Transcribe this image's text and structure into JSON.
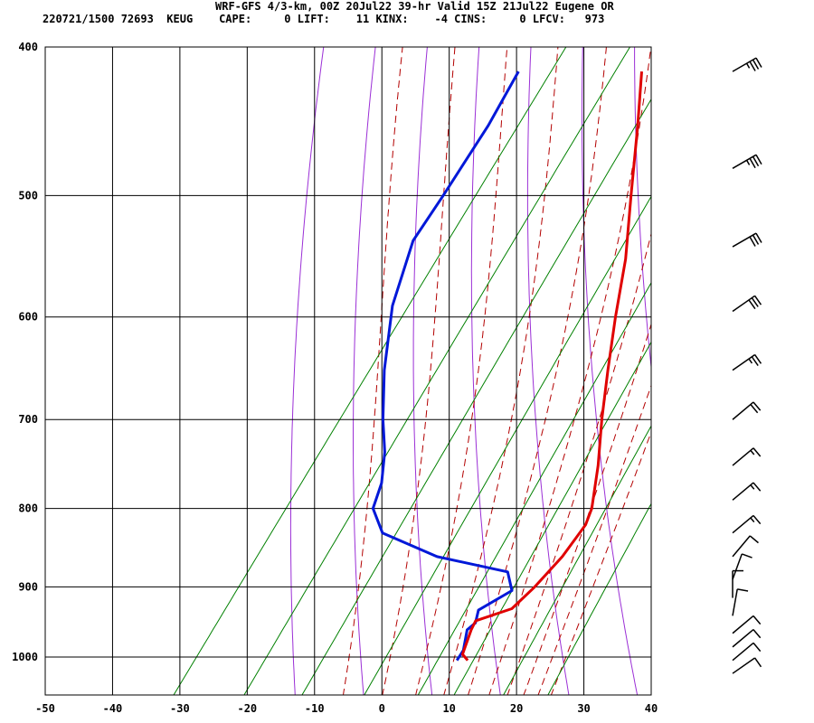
{
  "header": {
    "title": "WRF-GFS 4/3-km, 00Z 20Jul22 39-hr Valid 15Z 21Jul22 Eugene OR",
    "info": "220721/1500 72693  KEUG    CAPE:     0 LIFT:    11 KINX:    -4 CINS:     0 LFCV:   973"
  },
  "colors": {
    "temperature": "#e00000",
    "dewpoint": "#0018d8",
    "isotherm": "#000000",
    "isobar": "#000000",
    "dry_adiabat": "#9b2fd6",
    "moist_adiabat": "#b30000",
    "mixing_ratio": "#008000",
    "wind_barb": "#000000"
  },
  "chart_data": {
    "type": "skew-t",
    "x_axis_ticks": [
      "-50",
      "-40",
      "-30",
      "-20",
      "-10",
      "0",
      "10",
      "20",
      "30",
      "40"
    ],
    "y_axis_ticks": [
      "400",
      "500",
      "600",
      "700",
      "800",
      "900",
      "1000"
    ],
    "xlim": [
      -50,
      40
    ],
    "ylim_hpa": [
      1040,
      400
    ],
    "y_scale": "log",
    "grid": true,
    "temperature_profile": [
      {
        "p": 1005,
        "t": 13.1
      },
      {
        "p": 996,
        "t": 11.7
      },
      {
        "p": 960,
        "t": 10.4
      },
      {
        "p": 947,
        "t": 10.1
      },
      {
        "p": 930,
        "t": 14.2
      },
      {
        "p": 900,
        "t": 15.3
      },
      {
        "p": 860,
        "t": 16.2
      },
      {
        "p": 820,
        "t": 16.3
      },
      {
        "p": 800,
        "t": 15.5
      },
      {
        "p": 750,
        "t": 11.9
      },
      {
        "p": 700,
        "t": 7.6
      },
      {
        "p": 650,
        "t": 3.3
      },
      {
        "p": 600,
        "t": -1.2
      },
      {
        "p": 550,
        "t": -5.8
      },
      {
        "p": 500,
        "t": -11.7
      },
      {
        "p": 450,
        "t": -18.1
      },
      {
        "p": 415,
        "t": -23.2
      }
    ],
    "dewpoint_profile": [
      {
        "p": 1005,
        "t": 11.5
      },
      {
        "p": 990,
        "t": 11.4
      },
      {
        "p": 960,
        "t": 9.8
      },
      {
        "p": 950,
        "t": 10.3
      },
      {
        "p": 932,
        "t": 9.4
      },
      {
        "p": 905,
        "t": 12.3
      },
      {
        "p": 880,
        "t": 9.7
      },
      {
        "p": 860,
        "t": -2.4
      },
      {
        "p": 830,
        "t": -13.0
      },
      {
        "p": 800,
        "t": -17.0
      },
      {
        "p": 770,
        "t": -18.4
      },
      {
        "p": 735,
        "t": -21.2
      },
      {
        "p": 700,
        "t": -24.9
      },
      {
        "p": 650,
        "t": -29.9
      },
      {
        "p": 590,
        "t": -35.5
      },
      {
        "p": 535,
        "t": -39.3
      },
      {
        "p": 500,
        "t": -39.6
      },
      {
        "p": 450,
        "t": -40.3
      },
      {
        "p": 415,
        "t": -41.5
      }
    ],
    "isotherms_c": [
      -50,
      -40,
      -30,
      -20,
      -10,
      0,
      10,
      20,
      30,
      40
    ],
    "isobars_hpa": [
      400,
      500,
      600,
      700,
      800,
      900,
      1000
    ],
    "dry_adiabats_theta_k": [
      260,
      270,
      280,
      290,
      300,
      310,
      320,
      330,
      340,
      350,
      360,
      370,
      380,
      390,
      400,
      410
    ],
    "moist_adiabats_thetae_k": [
      275,
      285,
      295,
      305,
      315,
      325,
      335,
      345,
      355,
      365
    ],
    "mixing_ratio_lines_gkg": [
      0.4,
      1,
      2,
      4,
      7,
      10,
      16,
      24
    ],
    "wind_barbs": [
      {
        "p": 415,
        "speed_kt": 35,
        "dir_deg": 240
      },
      {
        "p": 480,
        "speed_kt": 35,
        "dir_deg": 240
      },
      {
        "p": 540,
        "speed_kt": 30,
        "dir_deg": 240
      },
      {
        "p": 595,
        "speed_kt": 30,
        "dir_deg": 235
      },
      {
        "p": 650,
        "speed_kt": 25,
        "dir_deg": 235
      },
      {
        "p": 700,
        "speed_kt": 20,
        "dir_deg": 230
      },
      {
        "p": 750,
        "speed_kt": 15,
        "dir_deg": 230
      },
      {
        "p": 790,
        "speed_kt": 15,
        "dir_deg": 230
      },
      {
        "p": 830,
        "speed_kt": 15,
        "dir_deg": 230
      },
      {
        "p": 860,
        "speed_kt": 10,
        "dir_deg": 220
      },
      {
        "p": 890,
        "speed_kt": 10,
        "dir_deg": 200
      },
      {
        "p": 915,
        "speed_kt": 10,
        "dir_deg": 180
      },
      {
        "p": 940,
        "speed_kt": 10,
        "dir_deg": 190
      },
      {
        "p": 965,
        "speed_kt": 10,
        "dir_deg": 230
      },
      {
        "p": 985,
        "speed_kt": 10,
        "dir_deg": 230
      },
      {
        "p": 1005,
        "speed_kt": 10,
        "dir_deg": 230
      },
      {
        "p": 1025,
        "speed_kt": 10,
        "dir_deg": 235
      }
    ]
  }
}
